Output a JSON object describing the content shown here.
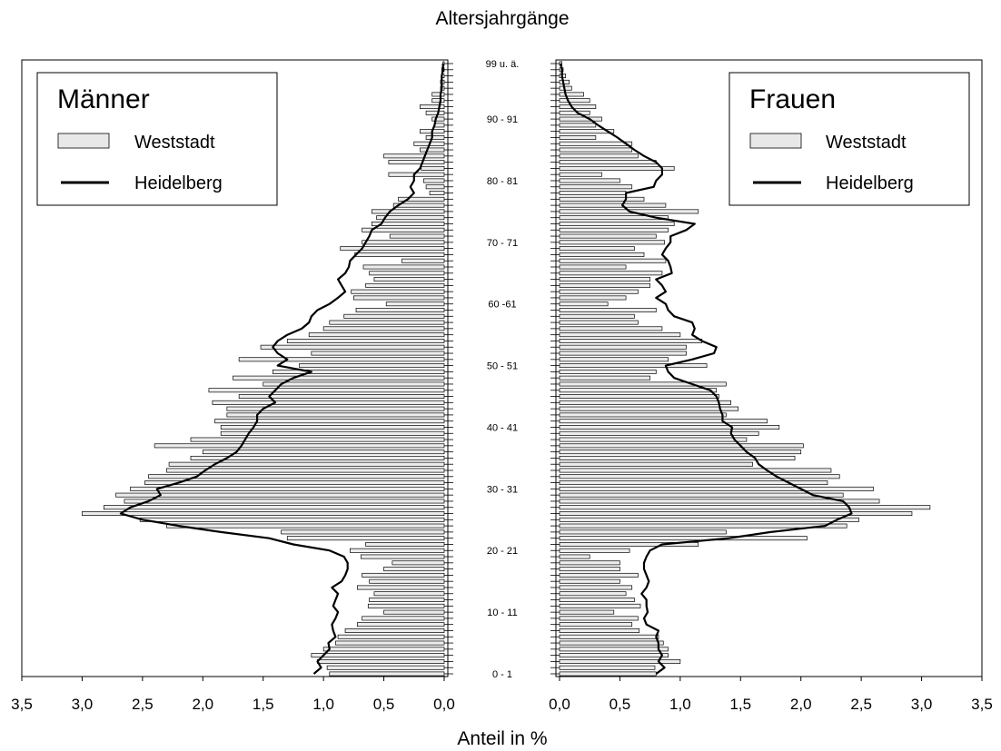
{
  "chart_data": {
    "type": "bar",
    "title": "Altersjahrgänge",
    "xlabel": "Anteil in %",
    "x_ticks": [
      "0,0",
      "0,5",
      "1,0",
      "1,5",
      "2,0",
      "2,5",
      "3,0",
      "3,5"
    ],
    "xlim": [
      0,
      3.5
    ],
    "age_labels": [
      {
        "age": 0,
        "label": "0 -  1"
      },
      {
        "age": 10,
        "label": "10 - 11"
      },
      {
        "age": 20,
        "label": "20 - 21"
      },
      {
        "age": 30,
        "label": "30 - 31"
      },
      {
        "age": 40,
        "label": "40 - 41"
      },
      {
        "age": 50,
        "label": "50 - 51"
      },
      {
        "age": 60,
        "label": "60 -61"
      },
      {
        "age": 70,
        "label": "70 - 71"
      },
      {
        "age": 80,
        "label": "80 - 81"
      },
      {
        "age": 90,
        "label": "90 - 91"
      },
      {
        "age": 99,
        "label": "99 u. ä."
      }
    ],
    "ages": [
      0,
      1,
      2,
      3,
      4,
      5,
      6,
      7,
      8,
      9,
      10,
      11,
      12,
      13,
      14,
      15,
      16,
      17,
      18,
      19,
      20,
      21,
      22,
      23,
      24,
      25,
      26,
      27,
      28,
      29,
      30,
      31,
      32,
      33,
      34,
      35,
      36,
      37,
      38,
      39,
      40,
      41,
      42,
      43,
      44,
      45,
      46,
      47,
      48,
      49,
      50,
      51,
      52,
      53,
      54,
      55,
      56,
      57,
      58,
      59,
      60,
      61,
      62,
      63,
      64,
      65,
      66,
      67,
      68,
      69,
      70,
      71,
      72,
      73,
      74,
      75,
      76,
      77,
      78,
      79,
      80,
      81,
      82,
      83,
      84,
      85,
      86,
      87,
      88,
      89,
      90,
      91,
      92,
      93,
      94,
      95,
      96,
      97,
      98,
      99
    ],
    "panels": [
      {
        "name": "Männer",
        "legend": {
          "bar": "Weststadt",
          "line": "Heidelberg"
        },
        "bars": [
          0.95,
          0.97,
          1.05,
          1.1,
          1.0,
          0.9,
          0.88,
          0.82,
          0.72,
          0.68,
          0.5,
          0.63,
          0.62,
          0.58,
          0.72,
          0.62,
          0.68,
          0.5,
          0.43,
          0.69,
          0.78,
          0.65,
          1.3,
          1.35,
          2.3,
          2.52,
          3.0,
          2.82,
          2.65,
          2.72,
          2.6,
          2.48,
          2.45,
          2.3,
          2.28,
          2.1,
          2.0,
          2.4,
          2.1,
          1.85,
          1.85,
          1.9,
          1.8,
          1.8,
          1.92,
          1.7,
          1.95,
          1.5,
          1.75,
          1.42,
          1.2,
          1.7,
          1.1,
          1.52,
          1.3,
          1.12,
          1.0,
          0.95,
          0.83,
          0.73,
          0.48,
          0.75,
          0.77,
          0.65,
          0.58,
          0.62,
          0.67,
          0.35,
          0.74,
          0.86,
          0.68,
          0.45,
          0.68,
          0.6,
          0.56,
          0.6,
          0.42,
          0.38,
          0.12,
          0.15,
          0.17,
          0.46,
          0.19,
          0.46,
          0.5,
          0.2,
          0.25,
          0.15,
          0.2,
          0.08,
          0.1,
          0.15,
          0.2,
          0.1,
          0.1,
          0.03,
          0.03,
          0.02,
          0.02,
          0.01
        ],
        "line": [
          1.08,
          1.02,
          1.05,
          1.0,
          0.95,
          0.96,
          0.9,
          0.92,
          0.93,
          0.9,
          0.88,
          0.92,
          0.9,
          0.88,
          0.93,
          0.85,
          0.82,
          0.8,
          0.8,
          0.83,
          0.95,
          1.25,
          1.45,
          1.85,
          2.2,
          2.5,
          2.68,
          2.6,
          2.45,
          2.35,
          2.38,
          2.2,
          2.05,
          1.98,
          1.9,
          1.8,
          1.72,
          1.68,
          1.65,
          1.62,
          1.58,
          1.55,
          1.55,
          1.5,
          1.4,
          1.45,
          1.4,
          1.35,
          1.25,
          1.1,
          1.38,
          1.3,
          1.38,
          1.42,
          1.38,
          1.3,
          1.18,
          1.12,
          1.1,
          1.05,
          0.95,
          0.88,
          0.82,
          0.85,
          0.88,
          0.82,
          0.79,
          0.78,
          0.73,
          0.68,
          0.65,
          0.62,
          0.6,
          0.52,
          0.49,
          0.45,
          0.38,
          0.3,
          0.25,
          0.28,
          0.25,
          0.25,
          0.2,
          0.18,
          0.16,
          0.14,
          0.12,
          0.1,
          0.1,
          0.08,
          0.07,
          0.05,
          0.04,
          0.03,
          0.03,
          0.02,
          0.02,
          0.02,
          0.01,
          0.01
        ]
      },
      {
        "name": "Frauen",
        "legend": {
          "bar": "Weststadt",
          "line": "Heidelberg"
        },
        "bars": [
          0.8,
          0.79,
          1.0,
          0.9,
          0.9,
          0.86,
          0.82,
          0.66,
          0.6,
          0.65,
          0.45,
          0.67,
          0.62,
          0.55,
          0.6,
          0.5,
          0.65,
          0.5,
          0.5,
          0.25,
          0.58,
          1.15,
          2.05,
          1.38,
          2.38,
          2.48,
          2.92,
          3.07,
          2.65,
          2.35,
          2.6,
          2.22,
          2.32,
          2.25,
          1.6,
          1.95,
          2.0,
          2.02,
          1.55,
          1.65,
          1.82,
          1.72,
          1.38,
          1.48,
          1.42,
          1.32,
          1.3,
          1.38,
          0.75,
          0.8,
          1.22,
          0.9,
          1.05,
          1.05,
          1.18,
          1.0,
          0.85,
          0.65,
          0.62,
          0.8,
          0.4,
          0.55,
          0.65,
          0.75,
          0.75,
          0.85,
          0.55,
          0.88,
          0.7,
          0.62,
          0.87,
          0.8,
          0.9,
          0.95,
          0.9,
          1.15,
          0.88,
          0.7,
          0.55,
          0.6,
          0.5,
          0.35,
          0.95,
          0.8,
          0.65,
          0.6,
          0.6,
          0.3,
          0.45,
          0.3,
          0.35,
          0.25,
          0.3,
          0.25,
          0.2,
          0.1,
          0.08,
          0.05,
          0.03,
          0.02
        ],
        "line": [
          0.8,
          0.87,
          0.82,
          0.85,
          0.82,
          0.82,
          0.8,
          0.82,
          0.72,
          0.7,
          0.73,
          0.72,
          0.72,
          0.68,
          0.72,
          0.74,
          0.72,
          0.7,
          0.7,
          0.72,
          0.75,
          0.85,
          1.4,
          1.75,
          2.2,
          2.3,
          2.42,
          2.4,
          2.35,
          2.1,
          2.0,
          1.9,
          1.8,
          1.72,
          1.65,
          1.62,
          1.55,
          1.5,
          1.45,
          1.42,
          1.43,
          1.35,
          1.35,
          1.33,
          1.32,
          1.3,
          1.25,
          1.1,
          0.95,
          0.9,
          0.88,
          1.1,
          1.28,
          1.3,
          1.18,
          1.1,
          1.12,
          1.1,
          0.95,
          0.9,
          0.88,
          0.8,
          0.88,
          0.85,
          0.8,
          0.93,
          0.92,
          0.9,
          0.85,
          0.88,
          0.92,
          0.92,
          1.05,
          1.12,
          0.8,
          0.58,
          0.52,
          0.55,
          0.55,
          0.78,
          0.8,
          0.85,
          0.85,
          0.8,
          0.7,
          0.62,
          0.55,
          0.48,
          0.4,
          0.32,
          0.25,
          0.15,
          0.1,
          0.07,
          0.05,
          0.04,
          0.03,
          0.02,
          0.02,
          0.01
        ]
      }
    ],
    "legend_position": "top"
  }
}
